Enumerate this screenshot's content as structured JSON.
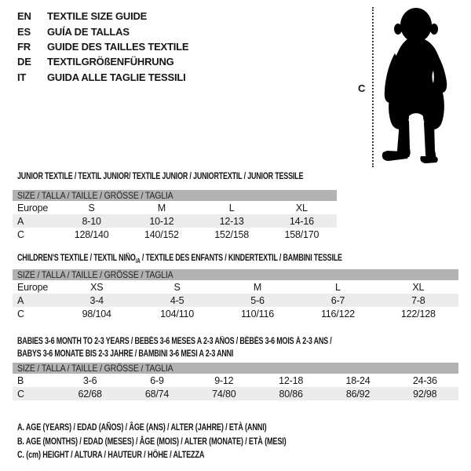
{
  "colors": {
    "band_gray": "#b2b2b2",
    "row_shade_gray": "#ececec",
    "text": "#161616",
    "silhouette": "#000000"
  },
  "languages": [
    {
      "code": "EN",
      "text": "TEXTILE SIZE GUIDE"
    },
    {
      "code": "ES",
      "text": "GUÍA DE TALLAS"
    },
    {
      "code": "FR",
      "text": "GUIDE DES TAILLES TEXTILE"
    },
    {
      "code": "DE",
      "text": "TEXTILGRÖßENFÜHRUNG"
    },
    {
      "code": "IT",
      "text": "GUIDA ALLE TAGLIE TESSILI"
    }
  ],
  "figure": {
    "height_label": "C",
    "icon": "baby-silhouette-icon"
  },
  "sections": [
    {
      "title_lines": [
        [
          {
            "t": "JUNIOR TEXTILE / TEXTIL JUNIOR/ TEXTILE JUNIOR / JUNIORTEXTIL / JUNIOR TESSILE"
          }
        ]
      ],
      "size_header": "SIZE / TALLA / TAILLE / GRÖSSE / TAGLIA",
      "rows": [
        {
          "label": "Europe",
          "shaded": false,
          "values": [
            "S",
            "M",
            "L",
            "XL"
          ]
        },
        {
          "label": "A",
          "shaded": true,
          "values": [
            "8-10",
            "10-12",
            "12-13",
            "14-16"
          ]
        },
        {
          "label": "C",
          "shaded": false,
          "values": [
            "128/140",
            "140/152",
            "152/158",
            "158/170"
          ]
        }
      ]
    },
    {
      "title_lines": [
        [
          {
            "t": "CHILDREN'S TEXTILE / TEXTIL NIÑO"
          },
          {
            "t": "/A",
            "sub": true
          },
          {
            "t": " / TEXTILE DES ENFANTS / KINDERTEXTIL / BAMBINI TESSILE"
          }
        ]
      ],
      "size_header": "SIZE / TALLA / TAILLE / GRÖSSE / TAGLIA",
      "rows": [
        {
          "label": "Europe",
          "shaded": false,
          "values": [
            "XS",
            "S",
            "M",
            "L",
            "XL"
          ]
        },
        {
          "label": "A",
          "shaded": true,
          "values": [
            "3-4",
            "4-5",
            "5-6",
            "6-7",
            "7-8"
          ]
        },
        {
          "label": "C",
          "shaded": false,
          "values": [
            "98/104",
            "104/110",
            "110/116",
            "116/122",
            "122/128"
          ]
        }
      ]
    },
    {
      "title_lines": [
        [
          {
            "t": "BABIES 3-6 MONTH TO 2-3 YEARS / BEBÉS 3-6 MESES A 2-3 AÑOS / BÉBÉS 3-6 MOIS À 2-3 ANS /"
          }
        ],
        [
          {
            "t": "BABYS 3-6 MONATE BIS 2-3 JAHRE / BAMBINI 3-6 MESI A 2-3 ANNI"
          }
        ]
      ],
      "size_header": "SIZE / TALLA / TAILLE / GRÖSSE / TAGLIA",
      "rows": [
        {
          "label": "B",
          "shaded": false,
          "values": [
            "3-6",
            "6-9",
            "9-12",
            "12-18",
            "18-24",
            "24-36"
          ]
        },
        {
          "label": "C",
          "shaded": true,
          "values": [
            "62/68",
            "68/74",
            "74/80",
            "80/86",
            "86/92",
            "92/98"
          ]
        }
      ]
    }
  ],
  "notes": [
    "A. AGE (YEARS) / EDAD (AÑOS) / ÂGE (ANS) / ALTER (JAHRE) / ETÀ (ANNI)",
    "B. AGE (MONTHS) / EDAD (MESES) / ÂGE (MOIS) / ALTER (MONATE) / ETÀ (MESI)",
    "C. (cm) HEIGHT / ALTURA / HAUTEUR / HÖHE / ALTEZZA"
  ]
}
